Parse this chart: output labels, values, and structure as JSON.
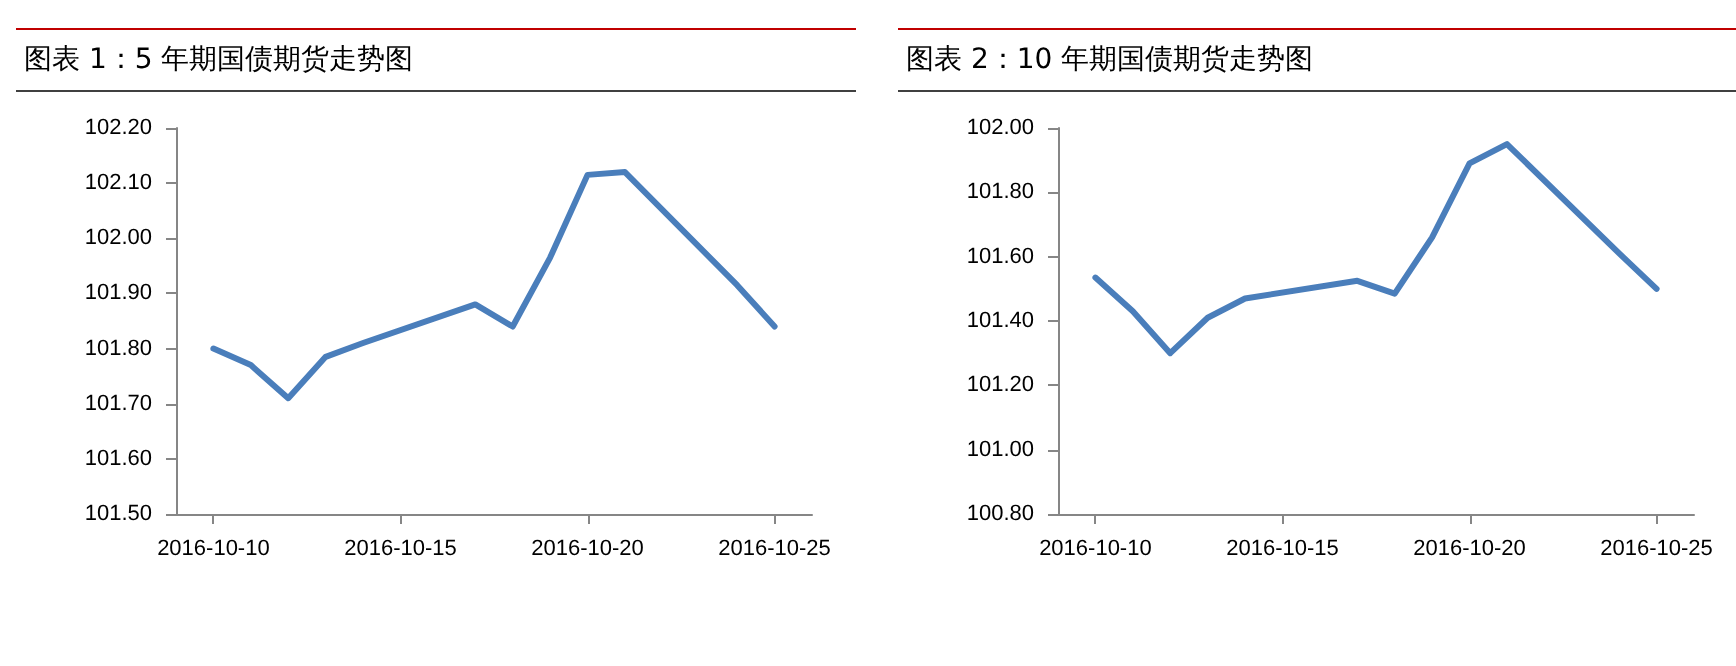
{
  "chart_data": [
    {
      "type": "line",
      "title": "图表 1：5 年期国债期货走势图",
      "x": [
        "2016-10-10",
        "2016-10-11",
        "2016-10-12",
        "2016-10-13",
        "2016-10-14",
        "2016-10-17",
        "2016-10-18",
        "2016-10-19",
        "2016-10-20",
        "2016-10-21",
        "2016-10-24",
        "2016-10-25"
      ],
      "series": [
        {
          "color": "#4a7ebb",
          "values": [
            101.8,
            101.77,
            101.71,
            101.785,
            101.81,
            101.88,
            101.84,
            101.965,
            102.115,
            102.12,
            101.915,
            101.84
          ]
        }
      ],
      "xlim": [
        "2016-10-09",
        "2016-10-26"
      ],
      "xticks": [
        "2016-10-10",
        "2016-10-15",
        "2016-10-20",
        "2016-10-25"
      ],
      "ylim": [
        101.5,
        102.2
      ],
      "yticks": [
        {
          "value": 101.5,
          "label": "101.50"
        },
        {
          "value": 101.6,
          "label": "101.60"
        },
        {
          "value": 101.7,
          "label": "101.70"
        },
        {
          "value": 101.8,
          "label": "101.80"
        },
        {
          "value": 101.9,
          "label": "101.90"
        },
        {
          "value": 102.0,
          "label": "102.00"
        },
        {
          "value": 102.1,
          "label": "102.10"
        },
        {
          "value": 102.2,
          "label": "102.20"
        }
      ],
      "marker": "none",
      "line_style": "solid"
    },
    {
      "type": "line",
      "title": "图表 2：10 年期国债期货走势图",
      "x": [
        "2016-10-10",
        "2016-10-11",
        "2016-10-12",
        "2016-10-13",
        "2016-10-14",
        "2016-10-17",
        "2016-10-18",
        "2016-10-19",
        "2016-10-20",
        "2016-10-21",
        "2016-10-24",
        "2016-10-25"
      ],
      "series": [
        {
          "color": "#4a7ebb",
          "values": [
            101.535,
            101.43,
            101.3,
            101.41,
            101.47,
            101.525,
            101.485,
            101.66,
            101.89,
            101.95,
            101.61,
            101.5
          ]
        }
      ],
      "xlim": [
        "2016-10-09",
        "2016-10-26"
      ],
      "xticks": [
        "2016-10-10",
        "2016-10-15",
        "2016-10-20",
        "2016-10-25"
      ],
      "ylim": [
        100.8,
        102.0
      ],
      "yticks": [
        {
          "value": 100.8,
          "label": "100.80"
        },
        {
          "value": 101.0,
          "label": "101.00"
        },
        {
          "value": 101.2,
          "label": "101.20"
        },
        {
          "value": 101.4,
          "label": "101.40"
        },
        {
          "value": 101.6,
          "label": "101.60"
        },
        {
          "value": 101.8,
          "label": "101.80"
        },
        {
          "value": 102.0,
          "label": "102.00"
        }
      ],
      "marker": "none",
      "line_style": "solid"
    }
  ]
}
